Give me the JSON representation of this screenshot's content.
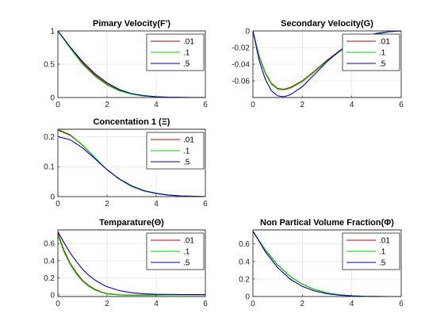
{
  "colors": {
    "s001": "#c00000",
    "s01": "#00d000",
    "s05": "#0000b0"
  },
  "chart_data": [
    {
      "type": "line",
      "title": "Pimary Velocity(F')",
      "xlim": [
        0,
        6
      ],
      "ylim": [
        0,
        1
      ],
      "xticks": [
        0,
        2,
        4,
        6
      ],
      "yticks": [
        0,
        0.5,
        1
      ],
      "xtick_labels": [
        "0",
        "2",
        "4",
        "6"
      ],
      "ytick_labels": [
        "0",
        "0.5",
        "1"
      ],
      "grid": true,
      "legend": "top-right",
      "series": [
        {
          "name": ".01",
          "color": "#c00000",
          "x": [
            0,
            0.5,
            1,
            1.5,
            2,
            2.5,
            3,
            3.5,
            4,
            4.5,
            5,
            5.5,
            6
          ],
          "y": [
            1,
            0.75,
            0.52,
            0.34,
            0.2,
            0.11,
            0.055,
            0.025,
            0.01,
            0.004,
            0.001,
            0,
            0
          ]
        },
        {
          "name": ".1",
          "color": "#00d000",
          "x": [
            0,
            0.5,
            1,
            1.5,
            2,
            2.5,
            3,
            3.5,
            4,
            4.5,
            5,
            5.5,
            6
          ],
          "y": [
            1,
            0.74,
            0.5,
            0.32,
            0.19,
            0.1,
            0.05,
            0.022,
            0.009,
            0.003,
            0.001,
            0,
            0
          ]
        },
        {
          "name": ".5",
          "color": "#0000b0",
          "x": [
            0,
            0.5,
            1,
            1.5,
            2,
            2.5,
            3,
            3.5,
            4,
            4.5,
            5,
            5.5,
            6
          ],
          "y": [
            1,
            0.76,
            0.54,
            0.36,
            0.22,
            0.12,
            0.06,
            0.028,
            0.012,
            0.005,
            0.002,
            0.001,
            0
          ]
        }
      ]
    },
    {
      "type": "line",
      "title": "Secondary Velocity(G)",
      "xlim": [
        0,
        6
      ],
      "ylim": [
        -0.08,
        0
      ],
      "xticks": [
        0,
        2,
        4,
        6
      ],
      "yticks": [
        -0.06,
        -0.04,
        -0.02,
        0
      ],
      "xtick_labels": [
        "0",
        "2",
        "4",
        "6"
      ],
      "ytick_labels": [
        "-0.06",
        "-0.04",
        "-0.02",
        "0"
      ],
      "grid": true,
      "legend": "top-right",
      "series": [
        {
          "name": ".01",
          "color": "#c00000",
          "x": [
            0,
            0.25,
            0.5,
            0.75,
            1,
            1.25,
            1.5,
            2,
            2.5,
            3,
            3.5,
            4,
            4.5,
            5,
            5.5,
            6
          ],
          "y": [
            0,
            -0.03,
            -0.05,
            -0.063,
            -0.069,
            -0.07,
            -0.068,
            -0.06,
            -0.048,
            -0.035,
            -0.024,
            -0.015,
            -0.008,
            -0.004,
            -0.001,
            0
          ]
        },
        {
          "name": ".1",
          "color": "#00d000",
          "x": [
            0,
            0.25,
            0.5,
            0.75,
            1,
            1.25,
            1.5,
            2,
            2.5,
            3,
            3.5,
            4,
            4.5,
            5,
            5.5,
            6
          ],
          "y": [
            0,
            -0.031,
            -0.051,
            -0.064,
            -0.07,
            -0.071,
            -0.069,
            -0.061,
            -0.049,
            -0.036,
            -0.025,
            -0.015,
            -0.008,
            -0.004,
            -0.001,
            0
          ]
        },
        {
          "name": ".5",
          "color": "#0000b0",
          "x": [
            0,
            0.25,
            0.5,
            0.75,
            1,
            1.25,
            1.5,
            2,
            2.5,
            3,
            3.5,
            4,
            4.5,
            5,
            5.5,
            6
          ],
          "y": [
            0,
            -0.035,
            -0.058,
            -0.072,
            -0.078,
            -0.079,
            -0.077,
            -0.067,
            -0.052,
            -0.037,
            -0.024,
            -0.014,
            -0.007,
            -0.003,
            -0.001,
            0
          ]
        }
      ]
    },
    {
      "type": "line",
      "title": "Concentation 1 (Ξ)",
      "xlim": [
        0,
        6
      ],
      "ylim": [
        0,
        0.225
      ],
      "xticks": [
        0,
        2,
        4,
        6
      ],
      "yticks": [
        0,
        0.1,
        0.2
      ],
      "xtick_labels": [
        "0",
        "2",
        "4",
        "6"
      ],
      "ytick_labels": [
        "0",
        "0.1",
        "0.2"
      ],
      "grid": true,
      "legend": "top-right",
      "series": [
        {
          "name": ".01",
          "color": "#c00000",
          "x": [
            0,
            0.5,
            1,
            1.5,
            2,
            2.5,
            3,
            3.5,
            4,
            4.5,
            5,
            5.5,
            6
          ],
          "y": [
            0.222,
            0.205,
            0.172,
            0.13,
            0.09,
            0.058,
            0.034,
            0.019,
            0.01,
            0.005,
            0.002,
            0.001,
            0
          ]
        },
        {
          "name": ".1",
          "color": "#00d000",
          "x": [
            0,
            0.5,
            1,
            1.5,
            2,
            2.5,
            3,
            3.5,
            4,
            4.5,
            5,
            5.5,
            6
          ],
          "y": [
            0.225,
            0.207,
            0.173,
            0.131,
            0.09,
            0.058,
            0.034,
            0.019,
            0.01,
            0.005,
            0.002,
            0.001,
            0
          ]
        },
        {
          "name": ".5",
          "color": "#0000b0",
          "x": [
            0,
            0.5,
            1,
            1.5,
            2,
            2.5,
            3,
            3.5,
            4,
            4.5,
            5,
            5.5,
            6
          ],
          "y": [
            0.2,
            0.19,
            0.163,
            0.127,
            0.09,
            0.059,
            0.036,
            0.02,
            0.011,
            0.005,
            0.002,
            0.001,
            0
          ]
        }
      ]
    },
    {
      "type": "line",
      "title": "Temparature(Θ)",
      "xlim": [
        0,
        6
      ],
      "ylim": [
        -0.02,
        0.76
      ],
      "xticks": [
        0,
        2,
        4,
        6
      ],
      "yticks": [
        0,
        0.2,
        0.4,
        0.6
      ],
      "xtick_labels": [
        "0",
        "2",
        "4",
        "6"
      ],
      "ytick_labels": [
        "0",
        "0.2",
        "0.4",
        "0.6"
      ],
      "grid": true,
      "legend": "top-right",
      "series": [
        {
          "name": ".01",
          "color": "#c00000",
          "x": [
            0,
            0.25,
            0.5,
            0.75,
            1,
            1.25,
            1.5,
            1.75,
            2,
            2.5,
            3,
            3.5,
            4,
            5,
            6
          ],
          "y": [
            0.72,
            0.52,
            0.37,
            0.26,
            0.17,
            0.11,
            0.065,
            0.035,
            0.015,
            0,
            -0.004,
            -0.003,
            -0.002,
            0,
            0
          ]
        },
        {
          "name": ".1",
          "color": "#00d000",
          "x": [
            0,
            0.25,
            0.5,
            0.75,
            1,
            1.25,
            1.5,
            1.75,
            2,
            2.5,
            3,
            3.5,
            4,
            5,
            6
          ],
          "y": [
            0.7,
            0.5,
            0.355,
            0.245,
            0.16,
            0.1,
            0.058,
            0.03,
            0.012,
            -0.002,
            -0.005,
            -0.004,
            -0.002,
            0,
            0
          ]
        },
        {
          "name": ".5",
          "color": "#0000b0",
          "x": [
            0,
            0.25,
            0.5,
            0.75,
            1,
            1.25,
            1.5,
            1.75,
            2,
            2.5,
            3,
            3.5,
            4,
            5,
            6
          ],
          "y": [
            0.74,
            0.61,
            0.49,
            0.39,
            0.3,
            0.23,
            0.175,
            0.13,
            0.095,
            0.05,
            0.025,
            0.012,
            0.006,
            0.003,
            0.002
          ]
        }
      ]
    },
    {
      "type": "line",
      "title": "Non Partical Volume Fraction(Φ)",
      "xlim": [
        0,
        6
      ],
      "ylim": [
        0,
        0.76
      ],
      "xticks": [
        0,
        2,
        4,
        6
      ],
      "yticks": [
        0,
        0.2,
        0.4,
        0.6
      ],
      "xtick_labels": [
        "0",
        "2",
        "4",
        "6"
      ],
      "ytick_labels": [
        "0",
        "0.2",
        "0.4",
        "0.6"
      ],
      "grid": true,
      "legend": "top-right",
      "series": [
        {
          "name": ".01",
          "color": "#c00000",
          "x": [
            0,
            0.5,
            1,
            1.5,
            2,
            2.5,
            3,
            3.5,
            4,
            4.5,
            5,
            5.5,
            6
          ],
          "y": [
            0.74,
            0.53,
            0.36,
            0.23,
            0.14,
            0.08,
            0.042,
            0.02,
            0.008,
            0.003,
            0.001,
            0,
            0
          ]
        },
        {
          "name": ".1",
          "color": "#00d000",
          "x": [
            0,
            0.5,
            1,
            1.5,
            2,
            2.5,
            3,
            3.5,
            4,
            4.5,
            5,
            5.5,
            6
          ],
          "y": [
            0.745,
            0.535,
            0.362,
            0.232,
            0.141,
            0.08,
            0.042,
            0.02,
            0.008,
            0.003,
            0.001,
            0,
            0
          ]
        },
        {
          "name": ".5",
          "color": "#0000b0",
          "x": [
            0,
            0.5,
            1,
            1.5,
            2,
            2.5,
            3,
            3.5,
            4,
            4.5,
            5,
            5.5,
            6
          ],
          "y": [
            0.75,
            0.51,
            0.33,
            0.2,
            0.115,
            0.063,
            0.032,
            0.015,
            0.006,
            0.002,
            0.001,
            0,
            0
          ]
        }
      ]
    }
  ]
}
